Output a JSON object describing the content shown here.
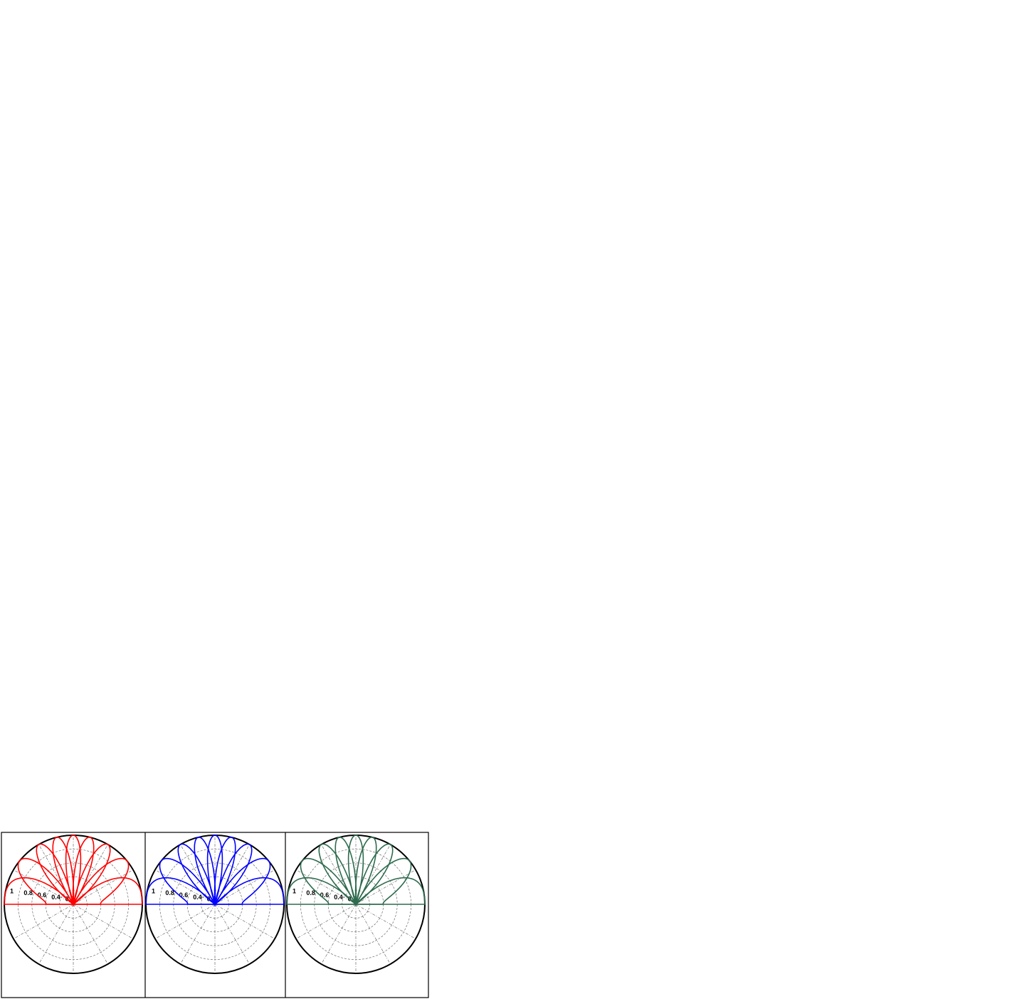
{
  "chart_data": [
    {
      "type": "polar",
      "rlim": [
        0,
        1
      ],
      "rticks": [
        0.2,
        0.4,
        0.6,
        0.8,
        1
      ],
      "thetaticks": [
        0,
        30,
        60,
        90,
        120,
        150,
        180,
        210,
        240,
        270,
        300,
        330
      ],
      "grid": true,
      "series": [
        {
          "color": "#ff0000",
          "values": [
            0,
            39,
            60,
            76,
            90,
            104,
            120,
            141,
            180
          ]
        }
      ]
    },
    {
      "type": "polar",
      "rlim": [
        0,
        1
      ],
      "rticks": [
        0.2,
        0.4,
        0.6,
        0.8,
        1
      ],
      "thetaticks": [
        0,
        30,
        60,
        90,
        120,
        150,
        180,
        210,
        240,
        270,
        300,
        330
      ],
      "grid": true,
      "series": [
        {
          "color": "#0000ff",
          "values": [
            0,
            39,
            60,
            76,
            90,
            104,
            120,
            141,
            180
          ]
        }
      ]
    },
    {
      "type": "polar",
      "rlim": [
        0,
        1
      ],
      "rticks": [
        0.2,
        0.4,
        0.6,
        0.8,
        1
      ],
      "thetaticks": [
        0,
        30,
        60,
        90,
        120,
        150,
        180,
        210,
        240,
        270,
        300,
        330
      ],
      "grid": true,
      "series": [
        {
          "color": "#2e6b4e",
          "values": [
            0,
            39,
            60,
            76,
            90,
            104,
            120,
            141,
            180
          ]
        }
      ]
    }
  ]
}
